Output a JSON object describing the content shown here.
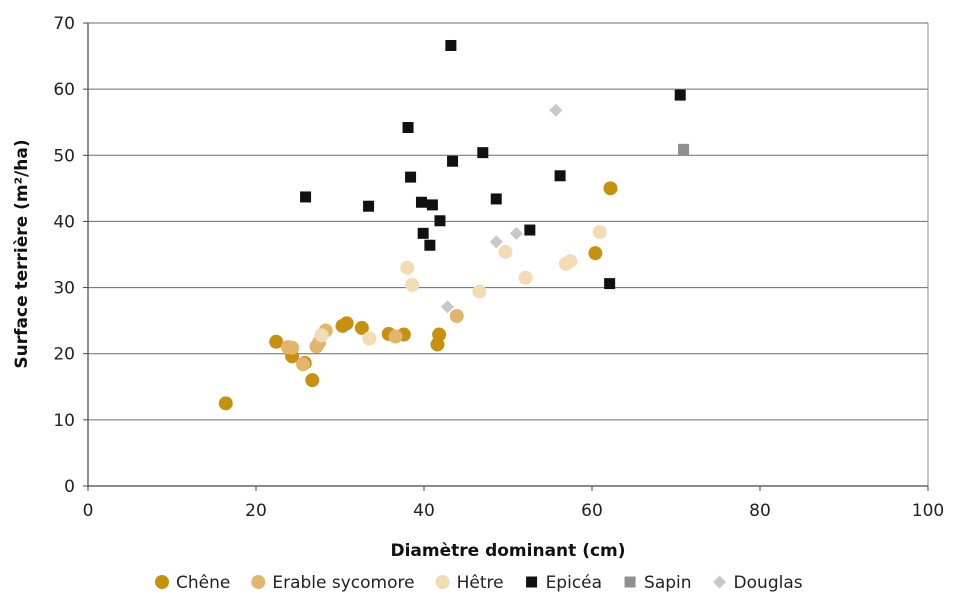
{
  "chart_data": {
    "type": "scatter",
    "title": "",
    "xlabel": "Diamètre dominant (cm)",
    "ylabel": "Surface terrière (m²/ha)",
    "xlim": [
      0,
      100
    ],
    "ylim": [
      0,
      70
    ],
    "x_ticks": [
      "0",
      "20",
      "40",
      "60",
      "80",
      "100"
    ],
    "y_ticks": [
      "0",
      "10",
      "20",
      "30",
      "40",
      "50",
      "60",
      "70"
    ],
    "grid": "horizontal",
    "legend_position": "bottom",
    "series": [
      {
        "name": "Chêne",
        "marker": "circle",
        "color": "#c8900f",
        "points": [
          [
            16.4,
            12.5
          ],
          [
            22.4,
            21.8
          ],
          [
            24.3,
            19.6
          ],
          [
            25.8,
            18.6
          ],
          [
            26.7,
            16.0
          ],
          [
            30.3,
            24.2
          ],
          [
            30.8,
            24.6
          ],
          [
            32.6,
            23.9
          ],
          [
            35.8,
            23.0
          ],
          [
            37.6,
            22.9
          ],
          [
            41.6,
            21.4
          ],
          [
            41.8,
            22.9
          ],
          [
            60.4,
            35.2
          ],
          [
            62.2,
            45.0
          ]
        ]
      },
      {
        "name": "Erable sycomore",
        "marker": "circle",
        "color": "#e3b56c",
        "points": [
          [
            23.8,
            21.0
          ],
          [
            24.3,
            20.9
          ],
          [
            25.6,
            18.4
          ],
          [
            27.2,
            21.1
          ],
          [
            27.5,
            21.7
          ],
          [
            28.3,
            23.5
          ],
          [
            36.6,
            22.6
          ],
          [
            43.9,
            25.7
          ]
        ]
      },
      {
        "name": "Hêtre",
        "marker": "circle",
        "color": "#f3dcb3",
        "points": [
          [
            27.8,
            22.8
          ],
          [
            33.5,
            22.3
          ],
          [
            38.0,
            33.0
          ],
          [
            38.6,
            30.4
          ],
          [
            46.6,
            29.4
          ],
          [
            49.7,
            35.4
          ],
          [
            52.1,
            31.5
          ],
          [
            56.9,
            33.6
          ],
          [
            57.4,
            34.0
          ],
          [
            60.9,
            38.4
          ]
        ]
      },
      {
        "name": "Epicéa",
        "marker": "square",
        "color": "#111111",
        "points": [
          [
            25.9,
            43.7
          ],
          [
            33.4,
            42.3
          ],
          [
            38.1,
            54.2
          ],
          [
            38.4,
            46.7
          ],
          [
            39.7,
            42.9
          ],
          [
            39.9,
            38.2
          ],
          [
            40.7,
            36.4
          ],
          [
            41.0,
            42.5
          ],
          [
            41.9,
            40.1
          ],
          [
            43.2,
            66.6
          ],
          [
            43.4,
            49.1
          ],
          [
            47.0,
            50.4
          ],
          [
            48.6,
            43.4
          ],
          [
            52.6,
            38.7
          ],
          [
            56.2,
            46.9
          ],
          [
            62.1,
            30.6
          ],
          [
            70.5,
            59.1
          ]
        ]
      },
      {
        "name": "Sapin",
        "marker": "square",
        "color": "#8f8f8f",
        "points": [
          [
            70.9,
            50.9
          ]
        ]
      },
      {
        "name": "Douglas",
        "marker": "diamond",
        "color": "#c8c8c8",
        "points": [
          [
            42.8,
            27.1
          ],
          [
            48.6,
            36.9
          ],
          [
            51.0,
            38.2
          ],
          [
            55.7,
            56.8
          ]
        ]
      }
    ]
  }
}
